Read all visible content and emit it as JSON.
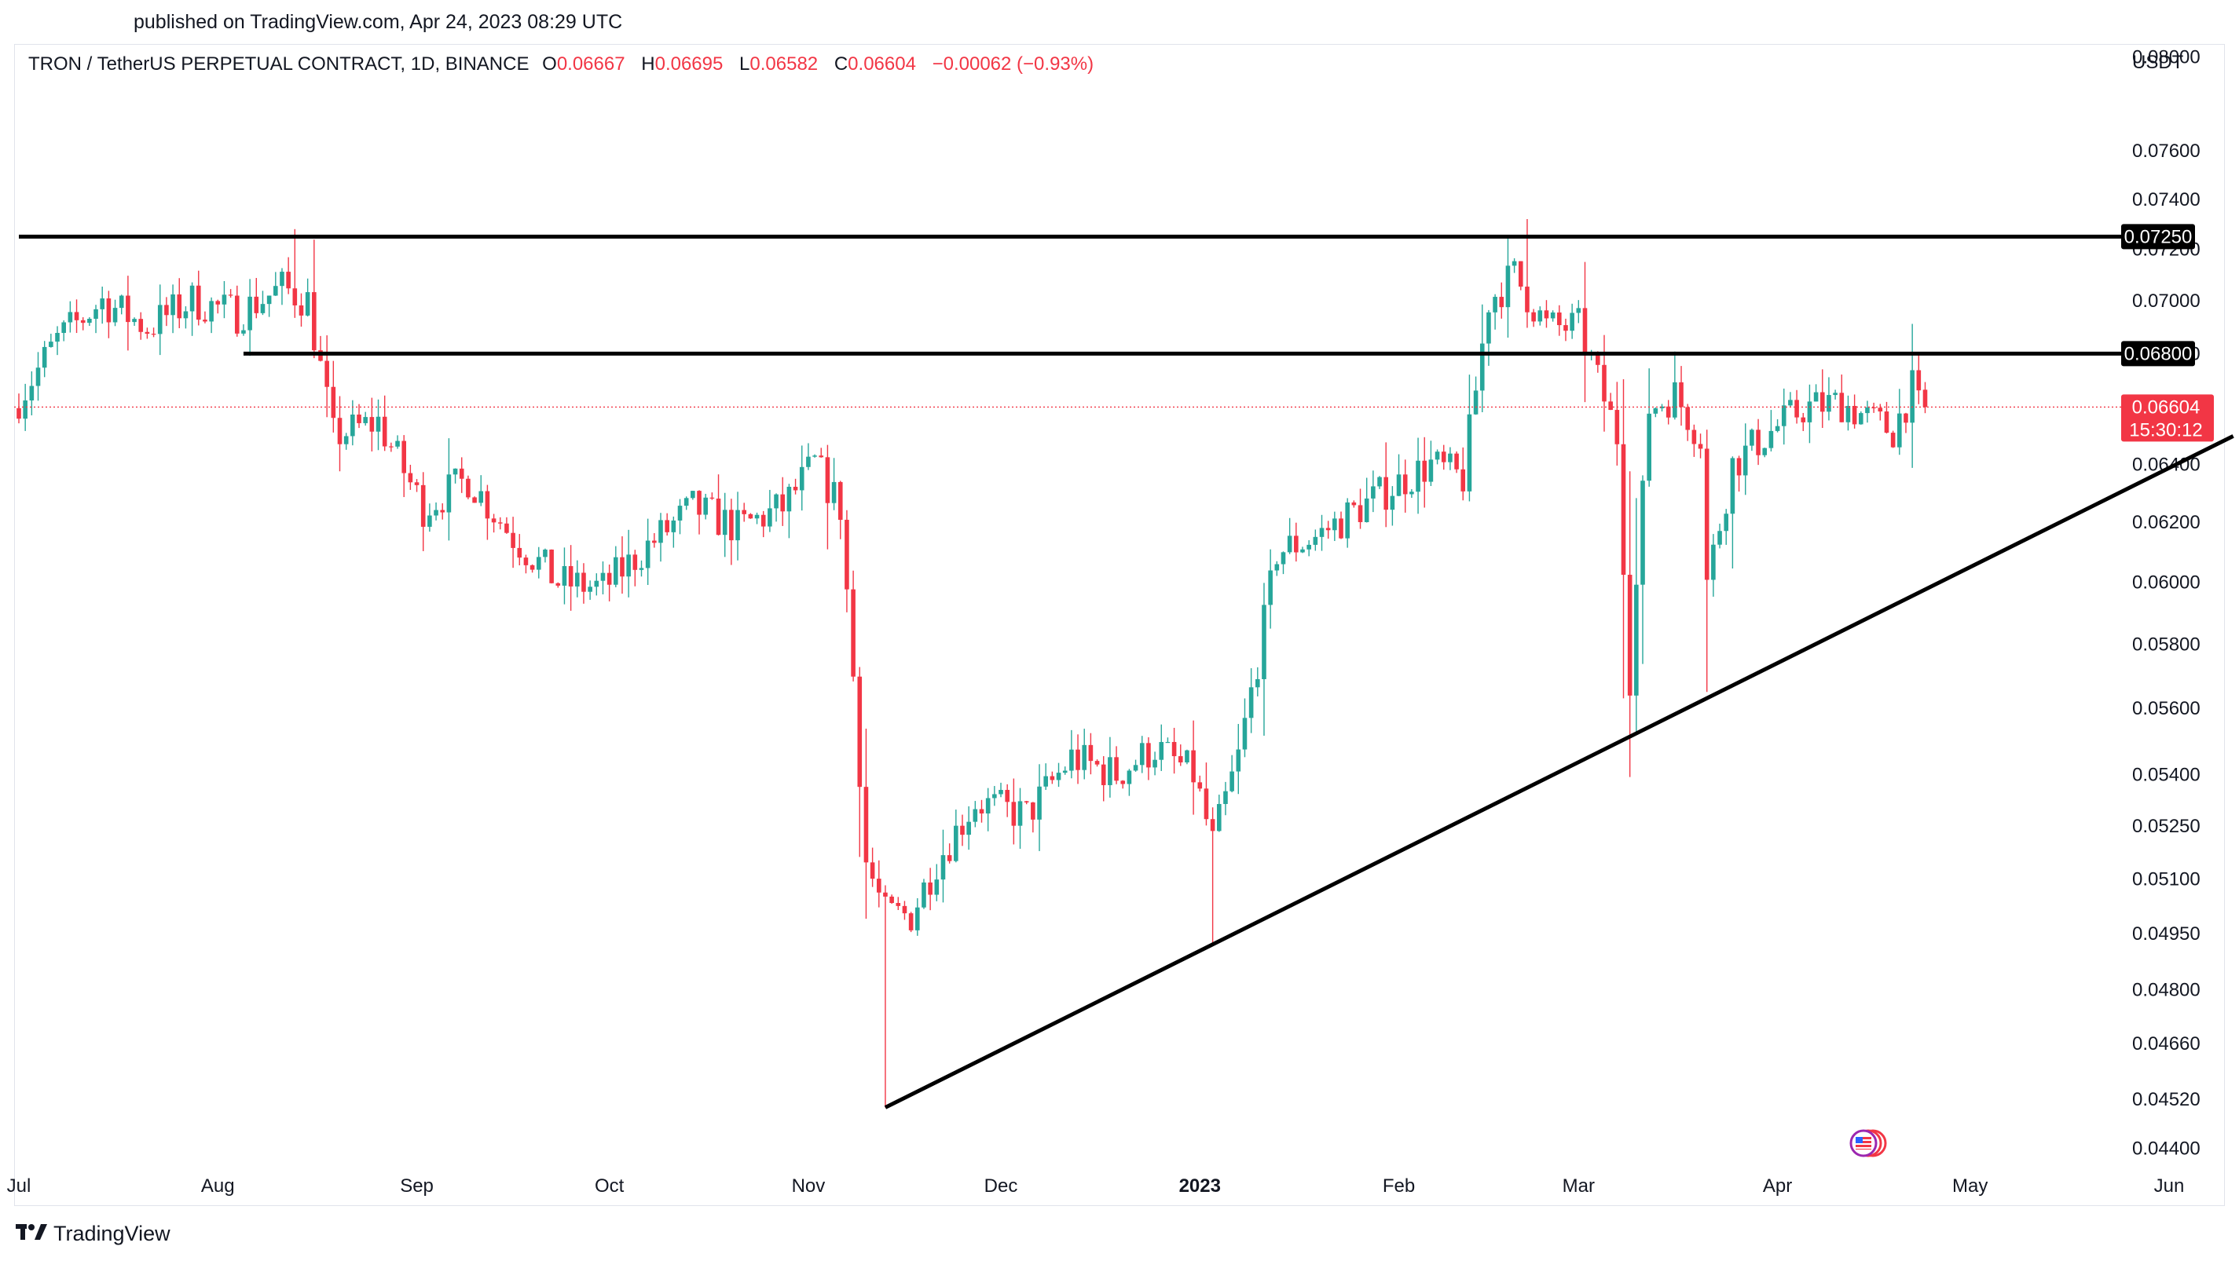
{
  "header": {
    "published": "published on TradingView.com, Apr 24, 2023 08:29 UTC"
  },
  "legend": {
    "symbol": "TRON / TetherUS PERPETUAL CONTRACT, 1D, BINANCE",
    "o_label": "O",
    "o_value": "0.06667",
    "h_label": "H",
    "h_value": "0.06695",
    "l_label": "L",
    "l_value": "0.06582",
    "c_label": "C",
    "c_value": "0.06604",
    "change": "−0.00062 (−0.93%)"
  },
  "axis": {
    "currency": "USDT"
  },
  "footer": {
    "brand": "TradingView"
  },
  "colors": {
    "up": "#26a69a",
    "down": "#f23645",
    "line": "#000000",
    "grid_border": "#e0e3eb"
  },
  "icons": {
    "logo": "tradingview-logo-icon",
    "flag": "us-flag-events-icon"
  },
  "chart_data": {
    "type": "candlestick",
    "symbol": "TRXUSDT.P",
    "interval": "1D",
    "last_price": "0.06604",
    "countdown": "15:30:12",
    "y_scale": "log",
    "ylim": [
      0.0433,
      0.0805
    ],
    "y_ticks": [
      "0.08000",
      "0.07600",
      "0.07400",
      "0.07200",
      "0.07000",
      "0.06800",
      "0.06600",
      "0.06400",
      "0.06200",
      "0.06000",
      "0.05800",
      "0.05600",
      "0.05400",
      "0.05250",
      "0.05100",
      "0.04950",
      "0.04800",
      "0.04660",
      "0.04520",
      "0.04400"
    ],
    "x_ticks": [
      {
        "label": "Jul",
        "date": "2022-07-01"
      },
      {
        "label": "Aug",
        "date": "2022-08-01"
      },
      {
        "label": "Sep",
        "date": "2022-09-01"
      },
      {
        "label": "Oct",
        "date": "2022-10-01"
      },
      {
        "label": "Nov",
        "date": "2022-11-01"
      },
      {
        "label": "Dec",
        "date": "2022-12-01"
      },
      {
        "label": "2023",
        "date": "2023-01-01",
        "bold": true
      },
      {
        "label": "Feb",
        "date": "2023-02-01"
      },
      {
        "label": "Mar",
        "date": "2023-03-01"
      },
      {
        "label": "Apr",
        "date": "2023-04-01"
      },
      {
        "label": "May",
        "date": "2023-05-01"
      },
      {
        "label": "Jun",
        "date": "2023-06-01"
      }
    ],
    "horizontal_lines": [
      {
        "price": 0.0725,
        "label": "0.07250",
        "from": "2022-07-01"
      },
      {
        "price": 0.068,
        "label": "0.06800",
        "from": "2022-08-05"
      }
    ],
    "trend_line": {
      "points": [
        [
          "2022-11-13",
          0.045
        ],
        [
          "2023-06-11",
          0.065
        ]
      ]
    },
    "price_anchors": [
      [
        "2022-07-01",
        0.066
      ],
      [
        "2022-07-08",
        0.0685
      ],
      [
        "2022-07-15",
        0.07
      ],
      [
        "2022-07-22",
        0.069
      ],
      [
        "2022-07-29",
        0.07
      ],
      [
        "2022-08-05",
        0.0695
      ],
      [
        "2022-08-12",
        0.0705
      ],
      [
        "2022-08-16",
        0.07
      ],
      [
        "2022-08-20",
        0.065
      ],
      [
        "2022-08-27",
        0.0655
      ],
      [
        "2022-09-03",
        0.0625
      ],
      [
        "2022-09-10",
        0.0635
      ],
      [
        "2022-09-17",
        0.0615
      ],
      [
        "2022-09-24",
        0.06
      ],
      [
        "2022-10-01",
        0.0598
      ],
      [
        "2022-10-08",
        0.0612
      ],
      [
        "2022-10-15",
        0.0625
      ],
      [
        "2022-10-22",
        0.0618
      ],
      [
        "2022-10-29",
        0.0625
      ],
      [
        "2022-11-03",
        0.064
      ],
      [
        "2022-11-07",
        0.0625
      ],
      [
        "2022-11-09",
        0.057
      ],
      [
        "2022-11-11",
        0.0515
      ],
      [
        "2022-11-14",
        0.05
      ],
      [
        "2022-11-18",
        0.05
      ],
      [
        "2022-11-22",
        0.0515
      ],
      [
        "2022-11-28",
        0.0532
      ],
      [
        "2022-12-06",
        0.0528
      ],
      [
        "2022-12-13",
        0.0545
      ],
      [
        "2022-12-20",
        0.054
      ],
      [
        "2022-12-26",
        0.0548
      ],
      [
        "2023-01-01",
        0.054
      ],
      [
        "2023-01-04",
        0.052
      ],
      [
        "2023-01-08",
        0.0545
      ],
      [
        "2023-01-11",
        0.0575
      ],
      [
        "2023-01-14",
        0.061
      ],
      [
        "2023-01-20",
        0.0615
      ],
      [
        "2023-01-27",
        0.0625
      ],
      [
        "2023-02-03",
        0.0635
      ],
      [
        "2023-02-07",
        0.064
      ],
      [
        "2023-02-12",
        0.0635
      ],
      [
        "2023-02-16",
        0.07
      ],
      [
        "2023-02-20",
        0.071
      ],
      [
        "2023-02-25",
        0.069
      ],
      [
        "2023-03-02",
        0.069
      ],
      [
        "2023-03-05",
        0.067
      ],
      [
        "2023-03-08",
        0.065
      ],
      [
        "2023-03-10",
        0.057
      ],
      [
        "2023-03-13",
        0.066
      ],
      [
        "2023-03-17",
        0.0665
      ],
      [
        "2023-03-21",
        0.065
      ],
      [
        "2023-03-22",
        0.06
      ],
      [
        "2023-03-26",
        0.064
      ],
      [
        "2023-03-31",
        0.065
      ],
      [
        "2023-04-06",
        0.066
      ],
      [
        "2023-04-12",
        0.0662
      ],
      [
        "2023-04-17",
        0.0655
      ],
      [
        "2023-04-20",
        0.0652
      ],
      [
        "2023-04-23",
        0.0667
      ],
      [
        "2023-04-24",
        0.066
      ]
    ],
    "last_candle": {
      "date": "2023-04-24",
      "open": 0.06667,
      "high": 0.06695,
      "low": 0.06582,
      "close": 0.06604
    }
  }
}
